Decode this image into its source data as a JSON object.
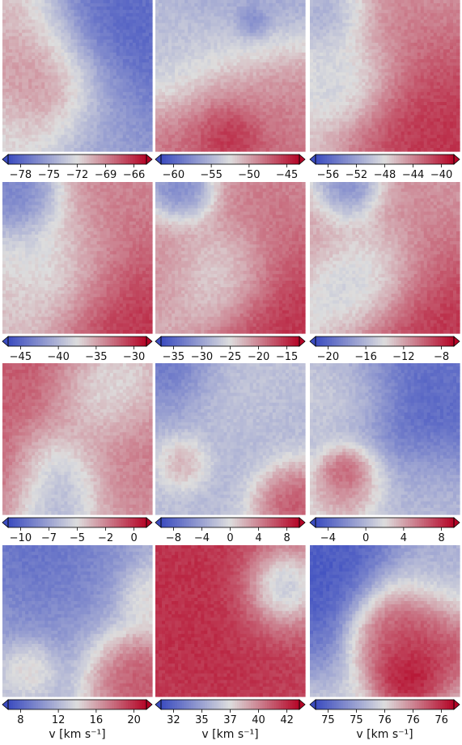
{
  "colormap": {
    "name": "coolwarm",
    "low": "#3b4cc0",
    "mid": "#dddddd",
    "high": "#b40426",
    "extend": "both"
  },
  "chart_data": [
    {
      "type": "heatmap",
      "row": 1,
      "col": 1,
      "colorbar_ticks": [
        "-78",
        "-75",
        "-72",
        "-69",
        "-66"
      ],
      "vmin": -79.5,
      "vmax": -65,
      "xlabel": "",
      "blobs": [
        {
          "x": 0.15,
          "y": 0.38,
          "v": 0.8,
          "r": 0.22
        },
        {
          "x": 0.35,
          "y": 0.62,
          "v": 0.95,
          "r": 0.2
        },
        {
          "x": 0.1,
          "y": 0.9,
          "v": 0.55,
          "r": 0.2
        },
        {
          "x": 0.72,
          "y": 0.35,
          "v": 0.05,
          "r": 0.45
        },
        {
          "x": 0.65,
          "y": 0.85,
          "v": 0.35,
          "r": 0.25
        },
        {
          "x": 0.05,
          "y": 0.05,
          "v": 0.65,
          "r": 0.2
        }
      ]
    },
    {
      "type": "heatmap",
      "row": 1,
      "col": 2,
      "colorbar_ticks": [
        "-60",
        "-55",
        "-50",
        "-45"
      ],
      "vmin": -65,
      "vmax": -44,
      "xlabel": "",
      "blobs": [
        {
          "x": 0.6,
          "y": 0.15,
          "v": 0.25,
          "r": 0.35
        },
        {
          "x": 0.5,
          "y": 0.75,
          "v": 0.85,
          "r": 0.35
        },
        {
          "x": 0.5,
          "y": 0.88,
          "v": 1.0,
          "r": 0.12
        },
        {
          "x": 0.1,
          "y": 0.4,
          "v": 0.35,
          "r": 0.2
        },
        {
          "x": 0.65,
          "y": 0.15,
          "v": 0.05,
          "r": 0.06
        },
        {
          "x": 0.9,
          "y": 0.6,
          "v": 0.75,
          "r": 0.2
        }
      ]
    },
    {
      "type": "heatmap",
      "row": 1,
      "col": 3,
      "colorbar_ticks": [
        "-56",
        "-52",
        "-48",
        "-44",
        "-40"
      ],
      "vmin": -58,
      "vmax": -37,
      "xlabel": "",
      "blobs": [
        {
          "x": 0.15,
          "y": 0.1,
          "v": 0.2,
          "r": 0.15
        },
        {
          "x": 0.3,
          "y": 0.5,
          "v": 0.3,
          "r": 0.18
        },
        {
          "x": 0.75,
          "y": 0.6,
          "v": 0.85,
          "r": 0.3
        },
        {
          "x": 0.85,
          "y": 0.85,
          "v": 0.95,
          "r": 0.25
        },
        {
          "x": 0.5,
          "y": 0.2,
          "v": 0.7,
          "r": 0.3
        }
      ]
    },
    {
      "type": "heatmap",
      "row": 2,
      "col": 1,
      "colorbar_ticks": [
        "-45",
        "-40",
        "-35",
        "-30"
      ],
      "vmin": -49,
      "vmax": -26,
      "xlabel": "",
      "blobs": [
        {
          "x": 0.15,
          "y": 0.1,
          "v": 0.1,
          "r": 0.15
        },
        {
          "x": 0.35,
          "y": 0.55,
          "v": 0.35,
          "r": 0.25
        },
        {
          "x": 0.8,
          "y": 0.85,
          "v": 0.95,
          "r": 0.3
        },
        {
          "x": 0.7,
          "y": 0.3,
          "v": 0.75,
          "r": 0.3
        },
        {
          "x": 0.1,
          "y": 0.75,
          "v": 0.6,
          "r": 0.2
        }
      ]
    },
    {
      "type": "heatmap",
      "row": 2,
      "col": 2,
      "colorbar_ticks": [
        "-35",
        "-30",
        "-25",
        "-20",
        "-15"
      ],
      "vmin": -35,
      "vmax": -12,
      "xlabel": "",
      "blobs": [
        {
          "x": 0.2,
          "y": 0.07,
          "v": 0.1,
          "r": 0.12
        },
        {
          "x": 0.45,
          "y": 0.6,
          "v": 0.35,
          "r": 0.2
        },
        {
          "x": 0.85,
          "y": 0.85,
          "v": 0.95,
          "r": 0.3
        },
        {
          "x": 0.7,
          "y": 0.3,
          "v": 0.75,
          "r": 0.3
        },
        {
          "x": 0.1,
          "y": 0.55,
          "v": 0.7,
          "r": 0.2
        }
      ]
    },
    {
      "type": "heatmap",
      "row": 2,
      "col": 3,
      "colorbar_ticks": [
        "-20",
        "-16",
        "-12",
        "-8"
      ],
      "vmin": -24,
      "vmax": -5,
      "xlabel": "",
      "blobs": [
        {
          "x": 0.25,
          "y": 0.07,
          "v": 0.0,
          "r": 0.12
        },
        {
          "x": 0.4,
          "y": 0.6,
          "v": 0.3,
          "r": 0.2
        },
        {
          "x": 0.85,
          "y": 0.85,
          "v": 0.95,
          "r": 0.3
        },
        {
          "x": 0.7,
          "y": 0.35,
          "v": 0.7,
          "r": 0.3
        },
        {
          "x": 0.1,
          "y": 0.3,
          "v": 0.65,
          "r": 0.2
        }
      ]
    },
    {
      "type": "heatmap",
      "row": 3,
      "col": 1,
      "colorbar_ticks": [
        "-10",
        "-7",
        "-5",
        "-2",
        "0"
      ],
      "vmin": -12,
      "vmax": 1,
      "xlabel": "",
      "blobs": [
        {
          "x": 0.3,
          "y": 0.1,
          "v": 0.85,
          "r": 0.3
        },
        {
          "x": 0.05,
          "y": 0.7,
          "v": 0.95,
          "r": 0.2
        },
        {
          "x": 0.3,
          "y": 0.75,
          "v": 0.15,
          "r": 0.2
        },
        {
          "x": 0.8,
          "y": 0.55,
          "v": 0.75,
          "r": 0.3
        },
        {
          "x": 0.65,
          "y": 0.2,
          "v": 0.3,
          "r": 0.2
        }
      ]
    },
    {
      "type": "heatmap",
      "row": 3,
      "col": 2,
      "colorbar_ticks": [
        "-8",
        "-4",
        "0",
        "4",
        "8"
      ],
      "vmin": -10,
      "vmax": 10,
      "xlabel": "",
      "blobs": [
        {
          "x": 0.15,
          "y": 0.05,
          "v": 0.05,
          "r": 0.18
        },
        {
          "x": 0.5,
          "y": 0.45,
          "v": 0.35,
          "r": 0.4
        },
        {
          "x": 0.9,
          "y": 0.9,
          "v": 0.95,
          "r": 0.15
        },
        {
          "x": 0.2,
          "y": 0.65,
          "v": 0.75,
          "r": 0.1
        },
        {
          "x": 0.5,
          "y": 0.2,
          "v": 0.45,
          "r": 0.2
        }
      ]
    },
    {
      "type": "heatmap",
      "row": 3,
      "col": 3,
      "colorbar_ticks": [
        "-4",
        "0",
        "4",
        "8"
      ],
      "vmin": -7,
      "vmax": 11,
      "xlabel": "",
      "blobs": [
        {
          "x": 0.65,
          "y": 0.3,
          "v": 0.05,
          "r": 0.35
        },
        {
          "x": 0.25,
          "y": 0.7,
          "v": 0.95,
          "r": 0.08
        },
        {
          "x": 0.3,
          "y": 0.75,
          "v": 0.8,
          "r": 0.15
        },
        {
          "x": 0.25,
          "y": 0.25,
          "v": 0.55,
          "r": 0.2
        },
        {
          "x": 0.75,
          "y": 0.85,
          "v": 0.4,
          "r": 0.2
        }
      ]
    },
    {
      "type": "heatmap",
      "row": 4,
      "col": 1,
      "colorbar_ticks": [
        "8",
        "12",
        "16",
        "20"
      ],
      "vmin": 4,
      "vmax": 22,
      "xlabel": "v [km s⁻¹]",
      "blobs": [
        {
          "x": 0.3,
          "y": 0.1,
          "v": 0.05,
          "r": 0.25
        },
        {
          "x": 0.5,
          "y": 0.4,
          "v": 0.25,
          "r": 0.35
        },
        {
          "x": 0.85,
          "y": 0.82,
          "v": 0.95,
          "r": 0.18
        },
        {
          "x": 0.2,
          "y": 0.8,
          "v": 0.6,
          "r": 0.1
        },
        {
          "x": 0.95,
          "y": 0.35,
          "v": 0.6,
          "r": 0.12
        }
      ]
    },
    {
      "type": "heatmap",
      "row": 4,
      "col": 2,
      "colorbar_ticks": [
        "32",
        "35",
        "37",
        "40",
        "42"
      ],
      "vmin": 30,
      "vmax": 43,
      "xlabel": "v [km s⁻¹]",
      "blobs": [
        {
          "x": 0.4,
          "y": 0.5,
          "v": 0.95,
          "r": 0.6
        },
        {
          "x": 0.85,
          "y": 0.28,
          "v": 0.0,
          "r": 0.12
        },
        {
          "x": 0.85,
          "y": 0.28,
          "v": 0.5,
          "r": 0.2
        },
        {
          "x": 0.2,
          "y": 0.2,
          "v": 0.9,
          "r": 0.3
        }
      ]
    },
    {
      "type": "heatmap",
      "row": 4,
      "col": 3,
      "colorbar_ticks": [
        "75",
        "75",
        "76",
        "76",
        "76"
      ],
      "vmin": 74.5,
      "vmax": 76.8,
      "xlabel": "v [km s⁻¹]",
      "blobs": [
        {
          "x": 0.15,
          "y": 0.2,
          "v": 0.0,
          "r": 0.3
        },
        {
          "x": 0.7,
          "y": 0.55,
          "v": 0.95,
          "r": 0.22
        },
        {
          "x": 0.55,
          "y": 0.55,
          "v": 0.9,
          "r": 0.15
        },
        {
          "x": 0.65,
          "y": 0.85,
          "v": 1.0,
          "r": 0.1
        },
        {
          "x": 0.85,
          "y": 0.2,
          "v": 0.3,
          "r": 0.2
        }
      ]
    }
  ]
}
